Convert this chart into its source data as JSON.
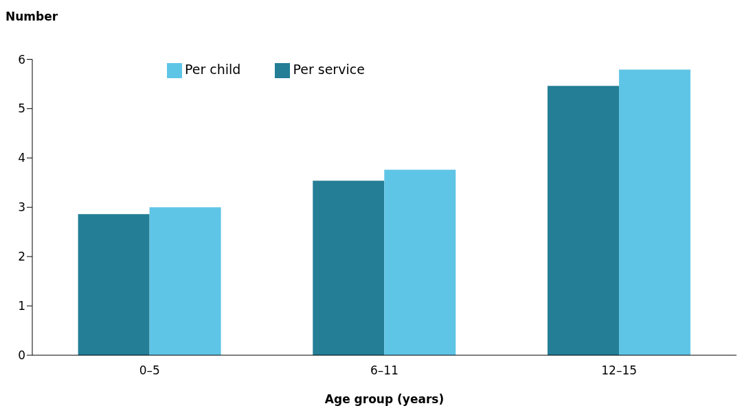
{
  "chart_data": {
    "type": "bar",
    "ylabel": "Number",
    "xlabel": "Age group (years)",
    "categories": [
      "0–5",
      "6–11",
      "12–15"
    ],
    "series": [
      {
        "name": "Per service",
        "color": "#237e96",
        "values": [
          2.86,
          3.54,
          5.46
        ]
      },
      {
        "name": "Per child",
        "color": "#5fc5e6",
        "values": [
          3.0,
          3.76,
          5.79
        ]
      }
    ],
    "ylim": [
      0,
      6
    ],
    "yticks": [
      0,
      1,
      2,
      3,
      4,
      5,
      6
    ],
    "grid": false,
    "legend": "top left"
  }
}
